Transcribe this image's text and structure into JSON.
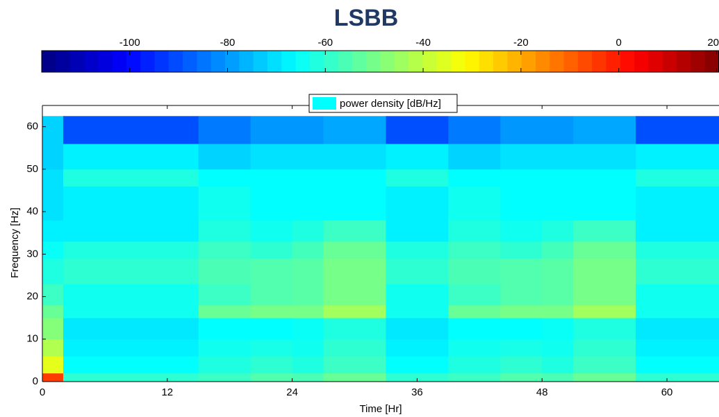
{
  "chart_data": {
    "type": "heatmap",
    "title": "LSBB",
    "xlabel": "Time [Hr]",
    "ylabel": "Frequency [Hz]",
    "legend": "power density [dB/Hz]",
    "legend_color": "#00ffff",
    "colormap": "jet",
    "clim": [
      -118,
      20.5
    ],
    "cticks": [
      -100,
      -80,
      -60,
      -40,
      -20,
      0,
      20
    ],
    "xlim": [
      0,
      65
    ],
    "xticks": [
      0,
      12,
      24,
      36,
      48,
      60
    ],
    "ylim": [
      0,
      65
    ],
    "yticks": [
      0,
      10,
      20,
      30,
      40,
      50,
      60
    ],
    "x_edges": [
      0,
      2,
      15,
      20,
      24,
      27,
      33,
      39,
      44,
      48,
      51,
      57,
      65
    ],
    "y_edges": [
      0,
      2,
      6,
      10,
      15,
      18,
      23,
      29,
      33,
      38,
      46,
      50,
      56,
      62.5
    ],
    "z": [
      [
        -5,
        -60,
        -58,
        -55,
        -56,
        -52,
        -60,
        -58,
        -55,
        -56,
        -52,
        -60
      ],
      [
        -35,
        -66,
        -62,
        -60,
        -62,
        -58,
        -66,
        -62,
        -60,
        -62,
        -58,
        -66
      ],
      [
        -42,
        -68,
        -64,
        -63,
        -64,
        -60,
        -68,
        -64,
        -63,
        -64,
        -60,
        -68
      ],
      [
        -48,
        -69,
        -66,
        -66,
        -65,
        -62,
        -69,
        -66,
        -66,
        -65,
        -62,
        -69
      ],
      [
        -52,
        -64,
        -52,
        -50,
        -50,
        -44,
        -64,
        -52,
        -50,
        -50,
        -44,
        -64
      ],
      [
        -58,
        -64,
        -58,
        -55,
        -54,
        -50,
        -64,
        -58,
        -55,
        -54,
        -50,
        -64
      ],
      [
        -62,
        -60,
        -56,
        -55,
        -54,
        -50,
        -60,
        -56,
        -55,
        -54,
        -50,
        -60
      ],
      [
        -65,
        -62,
        -58,
        -60,
        -57,
        -52,
        -62,
        -58,
        -60,
        -57,
        -52,
        -62
      ],
      [
        -68,
        -68,
        -62,
        -64,
        -62,
        -58,
        -68,
        -62,
        -64,
        -62,
        -58,
        -68
      ],
      [
        -70,
        -68,
        -64,
        -66,
        -66,
        -66,
        -68,
        -64,
        -66,
        -66,
        -66,
        -68
      ],
      [
        -70,
        -62,
        -66,
        -66,
        -66,
        -66,
        -62,
        -66,
        -66,
        -66,
        -66,
        -62
      ],
      [
        -72,
        -68,
        -72,
        -70,
        -70,
        -70,
        -68,
        -72,
        -70,
        -70,
        -70,
        -68
      ],
      [
        -72,
        -90,
        -84,
        -80,
        -80,
        -78,
        -90,
        -84,
        -80,
        -80,
        -78,
        -90
      ]
    ]
  }
}
